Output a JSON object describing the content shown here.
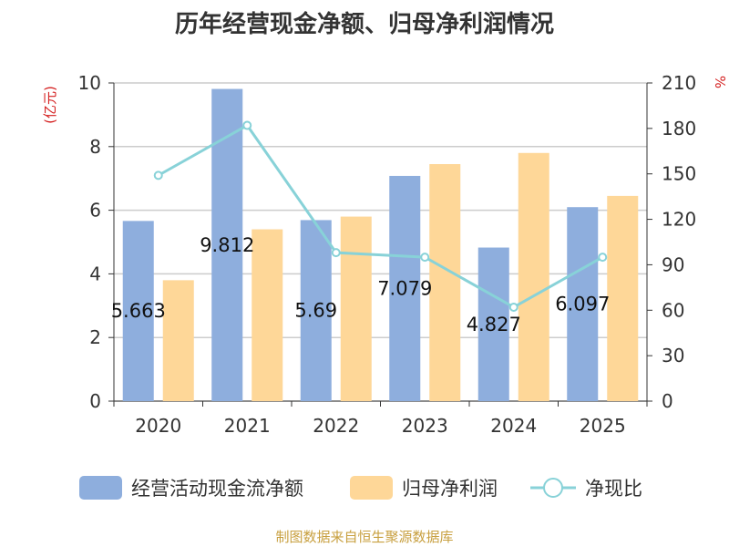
{
  "chart_data": {
    "type": "bar",
    "title": "历年经营现金净额、归母净利润情况",
    "categories": [
      "2020",
      "2021",
      "2022",
      "2023",
      "2024",
      "2025"
    ],
    "y_left": {
      "label": "(亿元)",
      "ylim": [
        0,
        10
      ],
      "ticks": [
        "0",
        "2",
        "4",
        "6",
        "8",
        "10"
      ]
    },
    "y_right": {
      "label": "%",
      "ylim": [
        0,
        210
      ],
      "ticks": [
        "0",
        "30",
        "60",
        "90",
        "120",
        "150",
        "180",
        "210"
      ]
    },
    "series": [
      {
        "name": "经营活动现金流净额",
        "type": "bar",
        "axis": "left",
        "color": "#8eaedd",
        "values": [
          5.663,
          9.812,
          5.69,
          7.079,
          4.827,
          6.097
        ],
        "labels": [
          "5.663",
          "9.812",
          "5.69",
          "7.079",
          "4.827",
          "6.097"
        ]
      },
      {
        "name": "归母净利润",
        "type": "bar",
        "axis": "left",
        "color": "#fed798",
        "values": [
          3.8,
          5.4,
          5.8,
          7.45,
          7.8,
          6.45
        ]
      },
      {
        "name": "净现比",
        "type": "line",
        "axis": "right",
        "color": "#88d2d8",
        "values": [
          149,
          182,
          98,
          95,
          62,
          95
        ]
      }
    ],
    "grid": true,
    "legend_position": "bottom"
  },
  "source": "制图数据来自恒生聚源数据库"
}
